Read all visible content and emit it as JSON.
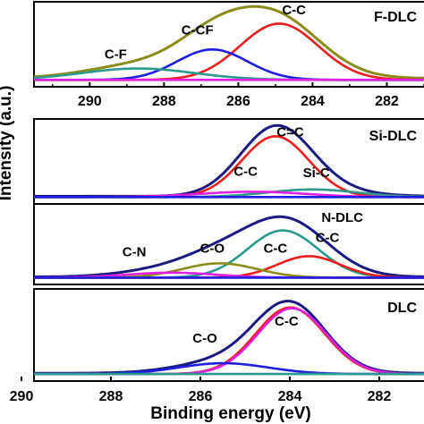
{
  "chart_data": {
    "type": "line",
    "x_axis": {
      "label": "Binding energy (eV)",
      "range": [
        290,
        281
      ],
      "reversed": true,
      "ticks": [
        290,
        288,
        286,
        284,
        282
      ]
    },
    "y_axis": {
      "label": "Intensity (a.u.)",
      "ticks_shown": false
    },
    "panels": [
      {
        "sample": "F-DLC",
        "range": [
          291.5,
          281.0
        ],
        "ticks": [
          290,
          288,
          286,
          284,
          282
        ],
        "series": [
          {
            "color": "#8b8b1a",
            "kind": "envelope",
            "peaks": [
              {
                "c": 285.0,
                "h": 0.79,
                "w": 1.2
              },
              {
                "c": 286.7,
                "h": 0.42,
                "w": 1.0
              },
              {
                "c": 288.6,
                "h": 0.18,
                "w": 1.4
              }
            ],
            "baseline": 0.04
          },
          {
            "color": "#ee1c1c",
            "peak": {
              "c": 284.9,
              "h": 0.74,
              "w": 1.05
            }
          },
          {
            "color": "#1e1ee0",
            "peak": {
              "c": 286.7,
              "h": 0.4,
              "w": 0.95
            }
          },
          {
            "color": "#2a9a8c",
            "peak": {
              "c": 288.7,
              "h": 0.15,
              "w": 1.5
            }
          },
          {
            "color": "#e020e0",
            "flat": true
          }
        ],
        "annotations": [
          {
            "text": "C-F",
            "x": 289.3,
            "y": 0.3
          },
          {
            "text": "C-CF",
            "x": 287.1,
            "y": 0.62
          },
          {
            "text": "C-C",
            "x": 284.5,
            "y": 0.88
          }
        ]
      },
      {
        "sample": "Si-DLC",
        "range": [
          291.5,
          281.0
        ],
        "series": [
          {
            "color": "#1a1a80",
            "kind": "envelope",
            "peaks": [
              {
                "c": 285.0,
                "h": 0.86,
                "w": 0.95
              },
              {
                "c": 284.0,
                "h": 0.1,
                "w": 1.2
              }
            ],
            "baseline": 0.03
          },
          {
            "color": "#ee1c1c",
            "peak": {
              "c": 285.0,
              "h": 0.8,
              "w": 0.9
            }
          },
          {
            "color": "#2a9a8c",
            "peak": {
              "c": 284.0,
              "h": 0.1,
              "w": 1.2
            }
          },
          {
            "color": "#e020e0",
            "peak": {
              "c": 285.6,
              "h": 0.07,
              "w": 1.4
            }
          },
          {
            "color": "#1e1ee0",
            "flat": true
          }
        ],
        "annotations": [
          {
            "text": "C=C",
            "x": 284.6,
            "y": 0.82
          },
          {
            "text": "C-C",
            "x": 285.8,
            "y": 0.3
          },
          {
            "text": "Si-C",
            "x": 283.9,
            "y": 0.28
          }
        ]
      },
      {
        "sample": "N-DLC",
        "range": [
          291.5,
          281.0
        ],
        "series": [
          {
            "color": "#1a1a80",
            "kind": "envelope",
            "peaks": [
              {
                "c": 284.7,
                "h": 0.78,
                "w": 1.1
              },
              {
                "c": 286.5,
                "h": 0.25,
                "w": 1.0
              },
              {
                "c": 287.9,
                "h": 0.1,
                "w": 1.2
              }
            ],
            "baseline": 0.03
          },
          {
            "color": "#2a9a8c",
            "peak": {
              "c": 284.8,
              "h": 0.66,
              "w": 0.95
            }
          },
          {
            "color": "#ee1c1c",
            "peak": {
              "c": 284.1,
              "h": 0.3,
              "w": 0.85
            }
          },
          {
            "color": "#8b8b1a",
            "peak": {
              "c": 286.5,
              "h": 0.2,
              "w": 1.0
            }
          },
          {
            "color": "#e020e0",
            "peak": {
              "c": 287.8,
              "h": 0.07,
              "w": 1.2
            }
          },
          {
            "color": "#1e1ee0",
            "flat": true
          }
        ],
        "annotations": [
          {
            "text": "N-DLC",
            "x": 283.2,
            "y": 0.8
          },
          {
            "text": "C-N",
            "x": 288.8,
            "y": 0.32
          },
          {
            "text": "C-O",
            "x": 286.7,
            "y": 0.37
          },
          {
            "text": "C-C",
            "x": 285.0,
            "y": 0.37
          },
          {
            "text": "C-C",
            "x": 283.6,
            "y": 0.52
          }
        ]
      },
      {
        "sample": "DLC",
        "range": [
          291.5,
          281.0
        ],
        "series": [
          {
            "color": "#1a1a80",
            "kind": "envelope",
            "peaks": [
              {
                "c": 284.6,
                "h": 0.82,
                "w": 0.95
              },
              {
                "c": 286.4,
                "h": 0.14,
                "w": 1.2
              }
            ],
            "baseline": 0.03
          },
          {
            "color": "#ee1c1c",
            "peak": {
              "c": 284.6,
              "h": 0.8,
              "w": 0.93
            }
          },
          {
            "color": "#e020e0",
            "peak": {
              "c": 284.55,
              "h": 0.79,
              "w": 0.93
            }
          },
          {
            "color": "#1e1ee0",
            "peak": {
              "c": 286.4,
              "h": 0.13,
              "w": 1.2
            }
          },
          {
            "color": "#2a9a8c",
            "flat": true
          }
        ],
        "annotations": [
          {
            "text": "C-C",
            "x": 284.7,
            "y": 0.6
          },
          {
            "text": "C-O",
            "x": 286.9,
            "y": 0.4
          }
        ]
      }
    ]
  }
}
